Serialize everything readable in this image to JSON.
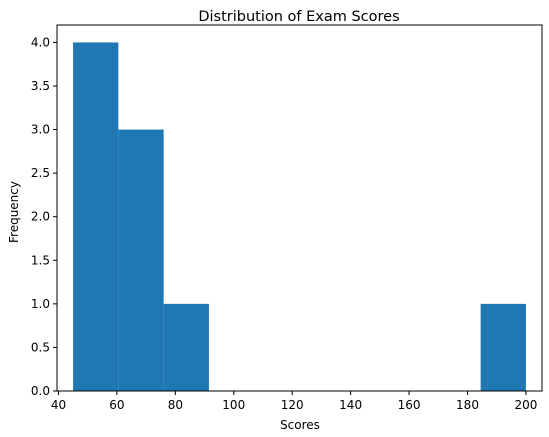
{
  "chart_data": {
    "type": "bar",
    "title": "Distribution of Exam Scores",
    "xlabel": "Scores",
    "ylabel": "Frequency",
    "bin_edges": [
      45.0,
      60.5,
      76.0,
      91.5,
      107.0,
      122.5,
      138.0,
      153.5,
      169.0,
      184.5,
      200.0
    ],
    "values": [
      4,
      3,
      1,
      0,
      0,
      0,
      0,
      0,
      0,
      1
    ],
    "xlim": [
      39.5,
      205.5
    ],
    "ylim": [
      0,
      4.2
    ],
    "xticks": [
      "40",
      "60",
      "80",
      "100",
      "120",
      "140",
      "160",
      "180",
      "200"
    ],
    "xtick_values": [
      40,
      60,
      80,
      100,
      120,
      140,
      160,
      180,
      200
    ],
    "yticks": [
      "0.0",
      "0.5",
      "1.0",
      "1.5",
      "2.0",
      "2.5",
      "3.0",
      "3.5",
      "4.0"
    ],
    "ytick_values": [
      0,
      0.5,
      1.0,
      1.5,
      2.0,
      2.5,
      3.0,
      3.5,
      4.0
    ],
    "grid": false,
    "colors": {
      "bar": "#1f77b4",
      "axis": "#000000",
      "background": "#ffffff"
    }
  }
}
